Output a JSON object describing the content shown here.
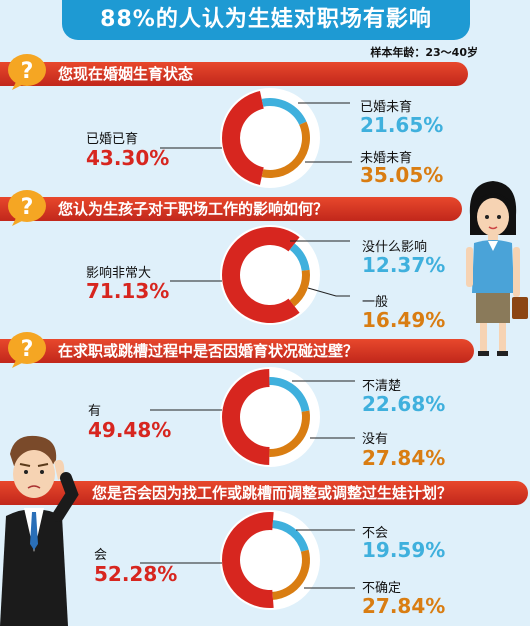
{
  "header": {
    "title": "88%的人认为生娃对职场有影响",
    "sample": "样本年龄：23～40岁"
  },
  "colors": {
    "red": "#d7261f",
    "blue": "#3fb0dd",
    "orange": "#d97d12",
    "title_blue": "#1e9ad3"
  },
  "questions": [
    {
      "text": "您现在婚姻生育状态"
    },
    {
      "text": "您认为生孩子对于职场工作的影响如何？"
    },
    {
      "text": "在求职或跳槽过程中是否因婚育状况碰过壁？"
    },
    {
      "text": "您是否会因为找工作或跳槽而调整或调整过生娃计划？"
    }
  ],
  "chart_data": [
    {
      "type": "pie",
      "title": "您现在婚姻生育状态",
      "slices": [
        {
          "label": "已婚已育",
          "value": 43.3,
          "display": "43.30%"
        },
        {
          "label": "已婚未育",
          "value": 21.65,
          "display": "21.65%"
        },
        {
          "label": "未婚未育",
          "value": 35.05,
          "display": "35.05%"
        }
      ]
    },
    {
      "type": "pie",
      "title": "您认为生孩子对于职场工作的影响如何？",
      "slices": [
        {
          "label": "影响非常大",
          "value": 71.13,
          "display": "71.13%"
        },
        {
          "label": "没什么影响",
          "value": 12.37,
          "display": "12.37%"
        },
        {
          "label": "一般",
          "value": 16.49,
          "display": "16.49%"
        }
      ]
    },
    {
      "type": "pie",
      "title": "在求职或跳槽过程中是否因婚育状况碰过壁？",
      "slices": [
        {
          "label": "有",
          "value": 49.48,
          "display": "49.48%"
        },
        {
          "label": "不清楚",
          "value": 22.68,
          "display": "22.68%"
        },
        {
          "label": "没有",
          "value": 27.84,
          "display": "27.84%"
        }
      ]
    },
    {
      "type": "pie",
      "title": "您是否会因为找工作或跳槽而调整或调整过生娃计划？",
      "slices": [
        {
          "label": "会",
          "value": 52.28,
          "display": "52.28%"
        },
        {
          "label": "不会",
          "value": 19.59,
          "display": "19.59%"
        },
        {
          "label": "不确定",
          "value": 27.84,
          "display": "27.84%"
        }
      ]
    }
  ]
}
